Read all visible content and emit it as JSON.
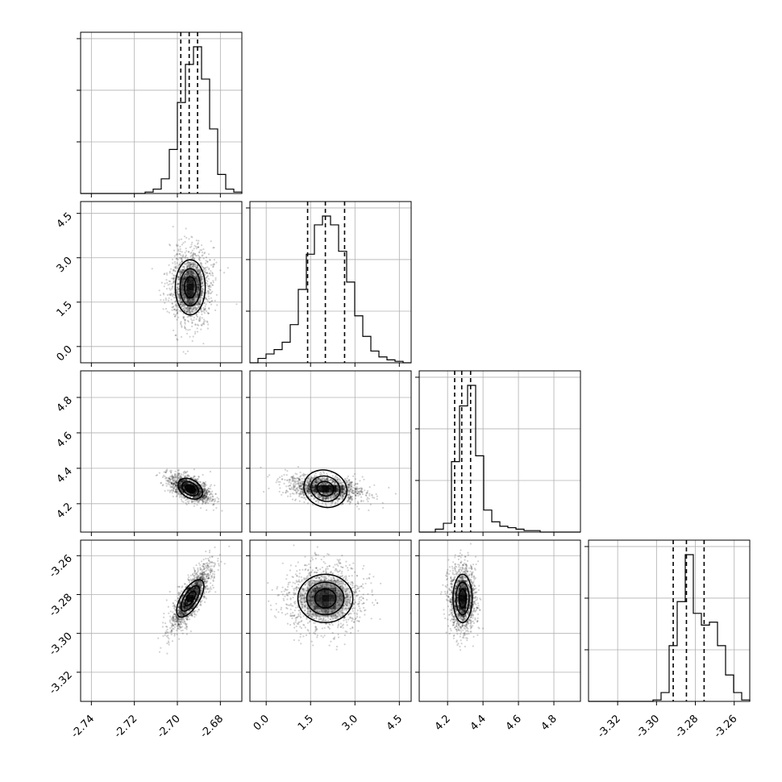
{
  "chart_data": {
    "type": "scatter",
    "variables": [
      {
        "range": [
          -2.745,
          -2.67
        ],
        "ticks": [
          "-2.74",
          "-2.72",
          "-2.70",
          "-2.68"
        ],
        "tick_values": [
          -2.74,
          -2.72,
          -2.7,
          -2.68
        ],
        "mean": -2.694,
        "sd": 0.0045,
        "quantiles": [
          -2.6984,
          -2.6945,
          -2.6906
        ]
      },
      {
        "range": [
          -0.55,
          4.9
        ],
        "ticks": [
          "0.0",
          "1.5",
          "3.0",
          "4.5"
        ],
        "tick_values": [
          0.0,
          1.5,
          3.0,
          4.5
        ],
        "mean": 2.0,
        "sd": 0.6,
        "quantiles": [
          1.4,
          2.0,
          2.65
        ]
      },
      {
        "range": [
          4.04,
          4.95
        ],
        "ticks": [
          "4.2",
          "4.4",
          "4.6",
          "4.8"
        ],
        "tick_values": [
          4.2,
          4.4,
          4.6,
          4.8
        ],
        "mean": 4.285,
        "sd": 0.035,
        "quantiles": [
          4.24,
          4.28,
          4.33
        ]
      },
      {
        "range": [
          -3.335,
          -3.252
        ],
        "ticks": [
          "-3.32",
          "-3.30",
          "-3.28",
          "-3.26"
        ],
        "tick_values": [
          -3.32,
          -3.3,
          -3.28,
          -3.26
        ],
        "mean": -3.282,
        "sd": 0.008,
        "quantiles": [
          -3.2914,
          -3.2846,
          -3.2755
        ]
      }
    ],
    "histograms": [
      {
        "var": 0,
        "counts": [
          0,
          0,
          0,
          0,
          0,
          0,
          0,
          0,
          1,
          3,
          10,
          30,
          62,
          88,
          100,
          78,
          44,
          13,
          3,
          1
        ]
      },
      {
        "var": 1,
        "counts": [
          0,
          3,
          6,
          9,
          14,
          26,
          50,
          74,
          94,
          100,
          94,
          76,
          55,
          32,
          18,
          8,
          4,
          2,
          1,
          0
        ]
      },
      {
        "var": 2,
        "counts": [
          0,
          0,
          2,
          6,
          48,
          86,
          100,
          52,
          15,
          7,
          4,
          3,
          2,
          1,
          1,
          0,
          0,
          0,
          0,
          0
        ]
      },
      {
        "var": 3,
        "counts": [
          0,
          0,
          0,
          0,
          0,
          0,
          0,
          0,
          1,
          6,
          38,
          68,
          100,
          60,
          52,
          54,
          38,
          18,
          6,
          1
        ]
      }
    ],
    "pairs": [
      {
        "x": 0,
        "y": 1,
        "rho": 0.0
      },
      {
        "x": 0,
        "y": 2,
        "rho": -0.55
      },
      {
        "x": 1,
        "y": 2,
        "rho": -0.3
      },
      {
        "x": 0,
        "y": 3,
        "rho": 0.82
      },
      {
        "x": 1,
        "y": 3,
        "rho": 0.0
      },
      {
        "x": 2,
        "y": 3,
        "rho": 0.0
      }
    ],
    "grid": true
  }
}
